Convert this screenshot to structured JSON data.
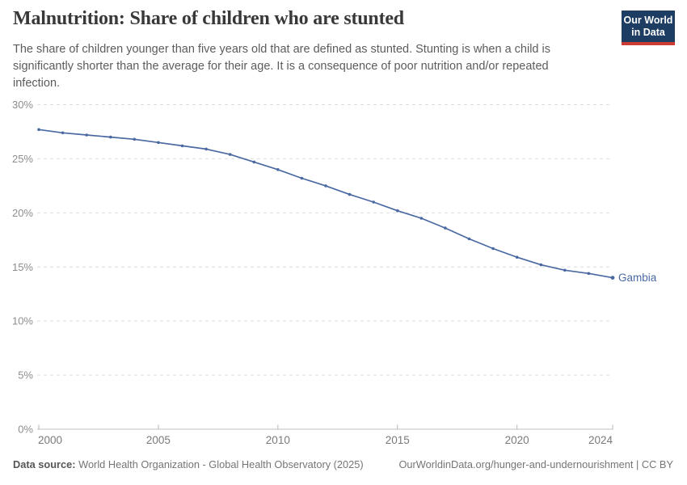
{
  "logo": {
    "line1": "Our World",
    "line2": "in Data"
  },
  "header": {
    "title": "Malnutrition: Share of children who are stunted",
    "subtitle": "The share of children younger than five years old that are defined as stunted. Stunting is when a child is significantly shorter than the average for their age. It is a consequence of poor nutrition and/or repeated infection."
  },
  "footer": {
    "source_label": "Data source:",
    "source_text": "World Health Organization - Global Health Observatory (2025)",
    "link_text": "OurWorldinData.org/hunger-and-undernourishment | CC BY"
  },
  "colors": {
    "accent_line": "#4a69a2",
    "logo_bg": "#1d3d63",
    "logo_stripe": "#cc3b34",
    "gridline": "#dedede",
    "axis_line": "#c2c2c2",
    "tick": "#b5b5b5",
    "y_tick_label": "#8d8d8d",
    "x_tick_label": "#7a7a7a"
  },
  "chart_data": {
    "type": "line",
    "title": "Malnutrition: Share of children who are stunted",
    "xlabel": "",
    "ylabel": "",
    "y_unit": "%",
    "xlim": [
      2000,
      2024
    ],
    "ylim": [
      0,
      30
    ],
    "x_ticks": [
      2000,
      2005,
      2010,
      2015,
      2020,
      2024
    ],
    "y_ticks": [
      0,
      5,
      10,
      15,
      20,
      25,
      30
    ],
    "grid": "horizontal-dashed",
    "legend": "end-of-line-label",
    "x": [
      2000,
      2001,
      2002,
      2003,
      2004,
      2005,
      2006,
      2007,
      2008,
      2009,
      2010,
      2011,
      2012,
      2013,
      2014,
      2015,
      2016,
      2017,
      2018,
      2019,
      2020,
      2021,
      2022,
      2023,
      2024
    ],
    "series": [
      {
        "name": "Gambia",
        "color": "#4a69a2",
        "values": [
          27.7,
          27.4,
          27.2,
          27.0,
          26.8,
          26.5,
          26.2,
          25.9,
          25.4,
          24.7,
          24.0,
          23.2,
          22.5,
          21.7,
          21.0,
          20.2,
          19.5,
          18.6,
          17.6,
          16.7,
          15.9,
          15.2,
          14.7,
          14.4,
          14.0
        ]
      }
    ]
  }
}
